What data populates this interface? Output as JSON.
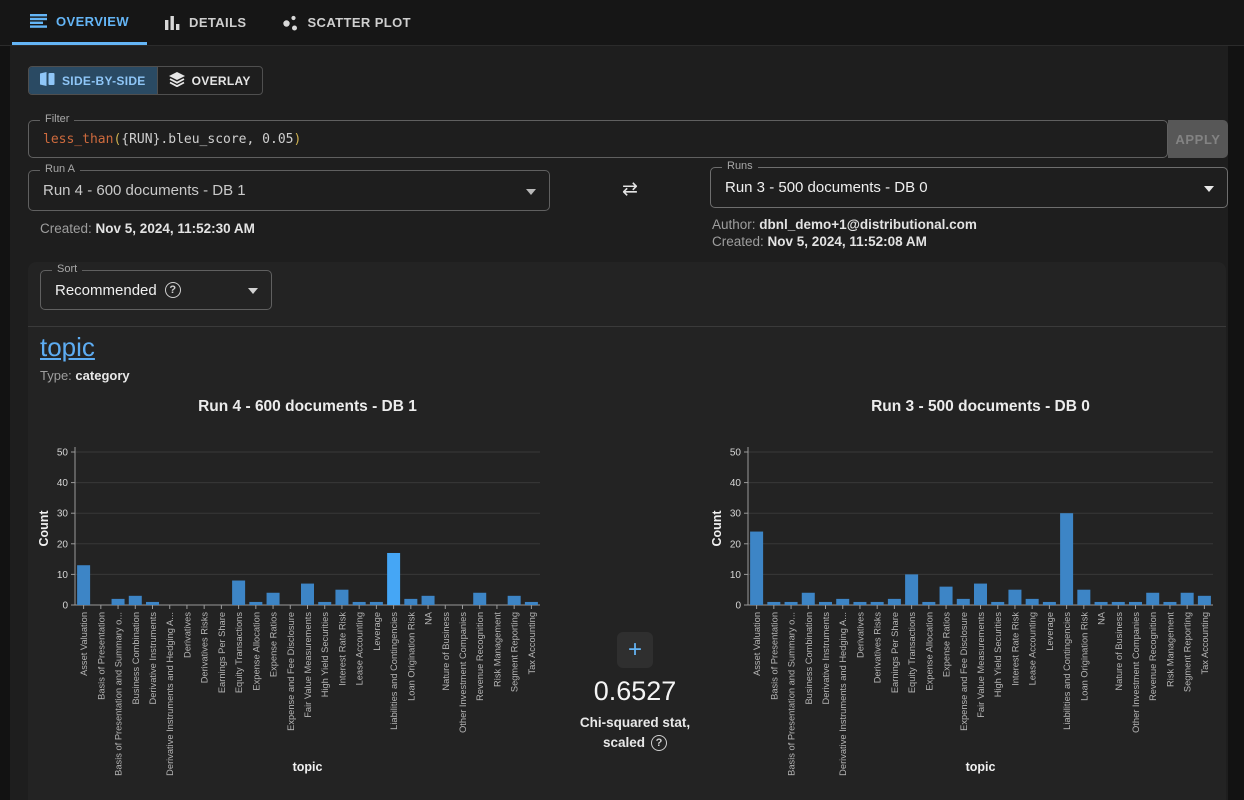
{
  "tabs": [
    {
      "label": "OVERVIEW",
      "active": true
    },
    {
      "label": "DETAILS",
      "active": false
    },
    {
      "label": "SCATTER PLOT",
      "active": false
    }
  ],
  "view_toggle": {
    "side_by_side_label": "SIDE-BY-SIDE",
    "overlay_label": "OVERLAY",
    "selected": "SIDE-BY-SIDE"
  },
  "filter": {
    "label": "Filter",
    "function": "less_than",
    "open_paren": "(",
    "arguments": "{RUN}.bleu_score, 0.05",
    "close_paren": ")",
    "apply_label": "APPLY"
  },
  "run_a": {
    "label": "Run A",
    "value": "Run 4 - 600 documents - DB 1",
    "created_label": "Created:",
    "created_value": "Nov 5, 2024, 11:52:30 AM"
  },
  "run_b": {
    "label": "Runs",
    "value": "Run 3 - 500 documents - DB 0",
    "author_label": "Author:",
    "author_value": "dbnl_demo+1@distributional.com",
    "created_label": "Created:",
    "created_value": "Nov 5, 2024, 11:52:08 AM"
  },
  "sort": {
    "label": "Sort",
    "value": "Recommended",
    "help_glyph": "?"
  },
  "metric": {
    "name": "topic",
    "type_label": "Type:",
    "type_value": "category"
  },
  "stat": {
    "add_label": "+",
    "value": "0.6527",
    "label_line1": "Chi-squared stat,",
    "label_line2": "scaled",
    "help_glyph": "?"
  },
  "colors": {
    "accent_blue": "#64b5f6",
    "bar_blue": "#3d85c6",
    "bar_highlight": "#45a6f5"
  },
  "chart_data": [
    {
      "type": "bar",
      "title": "Run 4 - 600 documents - DB 1",
      "xlabel": "topic",
      "ylabel": "Count",
      "ylim": [
        0,
        50
      ],
      "yticks": [
        0,
        10,
        20,
        30,
        40,
        50
      ],
      "grid": true,
      "categories": [
        "Asset Valuation",
        "Basis of Presentation",
        "Basis of Presentation and Summary o...",
        "Business Combination",
        "Derivative Instruments",
        "Derivative Instruments and Hedging A...",
        "Derivatives",
        "Derivatives Risks",
        "Earnings Per Share",
        "Equity Transactions",
        "Expense Allocation",
        "Expense Ratios",
        "Expense and Fee Disclosure",
        "Fair Value Measurements",
        "High Yield Securities",
        "Interest Rate Risk",
        "Lease Accounting",
        "Leverage",
        "Liabilities and Contingencies",
        "Loan Origination Risk",
        "NA",
        "Nature of Business",
        "Other Investment Companies",
        "Revenue Recognition",
        "Risk Management",
        "Segment Reporting",
        "Tax Accounting"
      ],
      "values": [
        13,
        0,
        2,
        3,
        1,
        0,
        0,
        0,
        0,
        8,
        1,
        4,
        0,
        7,
        1,
        5,
        1,
        1,
        17,
        2,
        3,
        0,
        0,
        4,
        0,
        3,
        1
      ],
      "highlight_index": 18,
      "bar_color": "#3d85c6",
      "highlight_color": "#45a6f5"
    },
    {
      "type": "bar",
      "title": "Run 3 - 500 documents - DB 0",
      "xlabel": "topic",
      "ylabel": "Count",
      "ylim": [
        0,
        50
      ],
      "yticks": [
        0,
        10,
        20,
        30,
        40,
        50
      ],
      "grid": true,
      "categories": [
        "Asset Valuation",
        "Basis of Presentation",
        "Basis of Presentation and Summary o...",
        "Business Combination",
        "Derivative Instruments",
        "Derivative Instruments and Hedging A...",
        "Derivatives",
        "Derivatives Risks",
        "Earnings Per Share",
        "Equity Transactions",
        "Expense Allocation",
        "Expense Ratios",
        "Expense and Fee Disclosure",
        "Fair Value Measurements",
        "High Yield Securities",
        "Interest Rate Risk",
        "Lease Accounting",
        "Leverage",
        "Liabilities and Contingencies",
        "Loan Origination Risk",
        "NA",
        "Nature of Business",
        "Other Investment Companies",
        "Revenue Recognition",
        "Risk Management",
        "Segment Reporting",
        "Tax Accounting"
      ],
      "values": [
        24,
        1,
        1,
        4,
        1,
        2,
        1,
        1,
        2,
        10,
        1,
        6,
        2,
        7,
        1,
        5,
        2,
        1,
        30,
        5,
        1,
        1,
        1,
        4,
        1,
        4,
        3
      ],
      "highlight_index": -1,
      "bar_color": "#3d85c6",
      "highlight_color": "#45a6f5"
    }
  ]
}
